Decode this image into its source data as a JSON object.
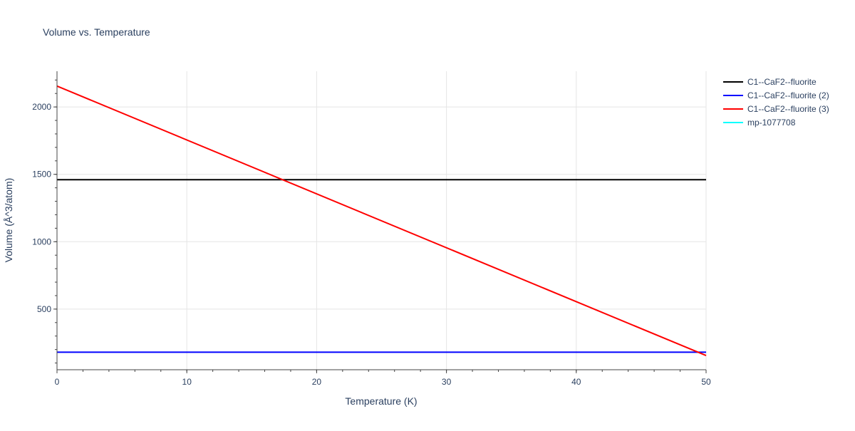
{
  "chart_data": {
    "type": "line",
    "title": "Volume vs. Temperature",
    "xlabel": "Temperature (K)",
    "ylabel": "Volume (Å^3/atom)",
    "xlim": [
      0,
      50
    ],
    "ylim": [
      50,
      2265
    ],
    "x_ticks": [
      0,
      10,
      20,
      30,
      40,
      50
    ],
    "y_ticks": [
      500,
      1000,
      1500,
      2000
    ],
    "grid": true,
    "legend_position": "top-right",
    "series": [
      {
        "name": "C1--CaF2--fluorite",
        "color": "#000000",
        "x": [
          0,
          50
        ],
        "y": [
          1460,
          1460
        ]
      },
      {
        "name": "C1--CaF2--fluorite (2)",
        "color": "#0000ff",
        "x": [
          0,
          50
        ],
        "y": [
          180,
          180
        ]
      },
      {
        "name": "C1--CaF2--fluorite (3)",
        "color": "#ff0000",
        "x": [
          0,
          50
        ],
        "y": [
          2155,
          155
        ]
      },
      {
        "name": "mp-1077708",
        "color": "#00ffff",
        "x": [],
        "y": []
      }
    ]
  }
}
